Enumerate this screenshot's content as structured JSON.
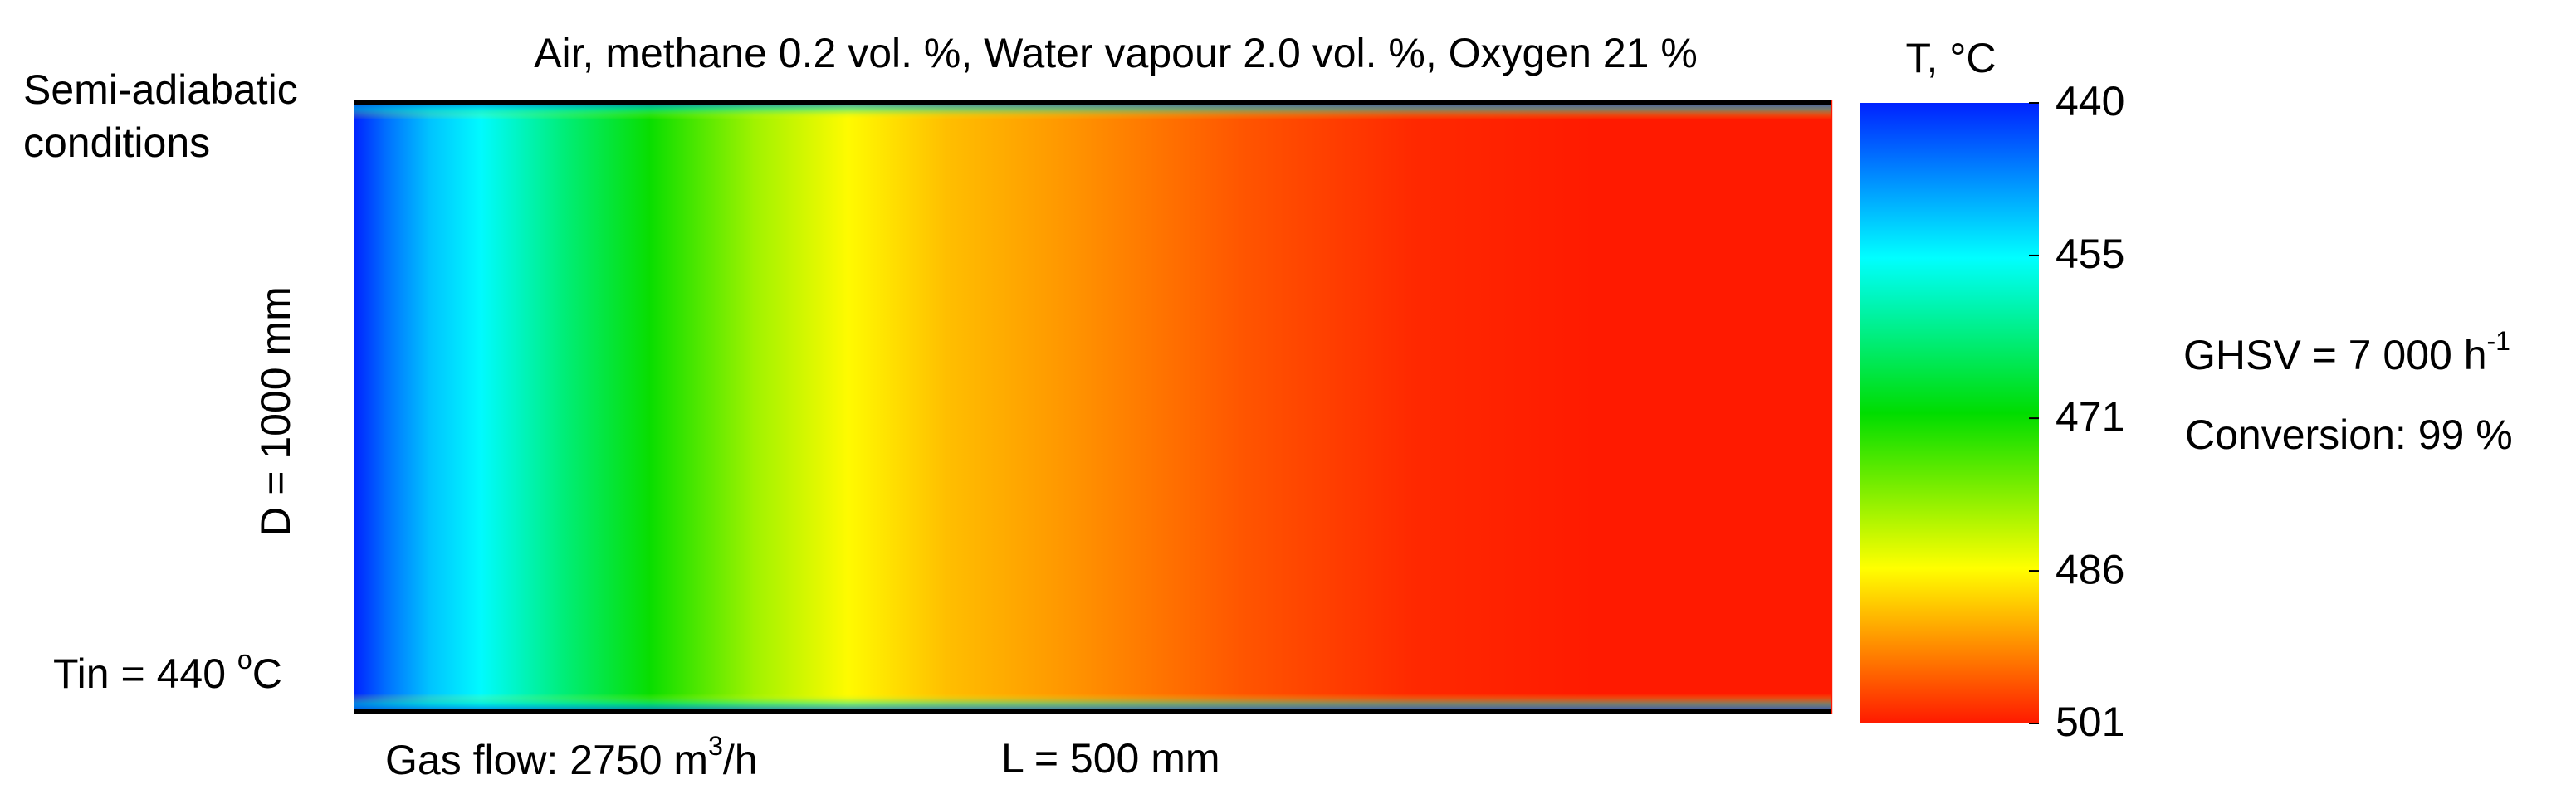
{
  "chart_data": {
    "type": "heatmap",
    "title": "Air, methane 0.2 vol. %, Water vapour 2.0 vol. %, Oxygen 21 %",
    "side_label": [
      "Semi-adiabatic",
      "conditions"
    ],
    "y_label": "D = 1000 mm",
    "inlet": {
      "text": "Tin = 440 ",
      "sup": "o",
      "after": "C"
    },
    "gas_flow": {
      "text": "Gas flow: 2750 m",
      "sup": "3",
      "after": "/h"
    },
    "x_label": "L = 500 mm",
    "ghsv": {
      "text": "GHSV = 7 000 h",
      "sup": "-1"
    },
    "conversion": "Conversion: 99 %",
    "colorbar_label": "T, °C",
    "x": [
      0,
      10,
      25,
      43,
      70,
      100,
      135,
      167,
      200,
      245,
      300,
      358,
      420,
      500
    ],
    "values": [
      440,
      445,
      451,
      455,
      463,
      471,
      480,
      486,
      490,
      493,
      497,
      500,
      501,
      501
    ],
    "xlim": [
      0,
      500
    ],
    "zlim": [
      440,
      501
    ],
    "zticks": [
      440,
      455,
      471,
      486,
      501
    ],
    "colormap": [
      "#0022ff",
      "#00ffff",
      "#00dd00",
      "#ffff00",
      "#ff1a00"
    ]
  }
}
